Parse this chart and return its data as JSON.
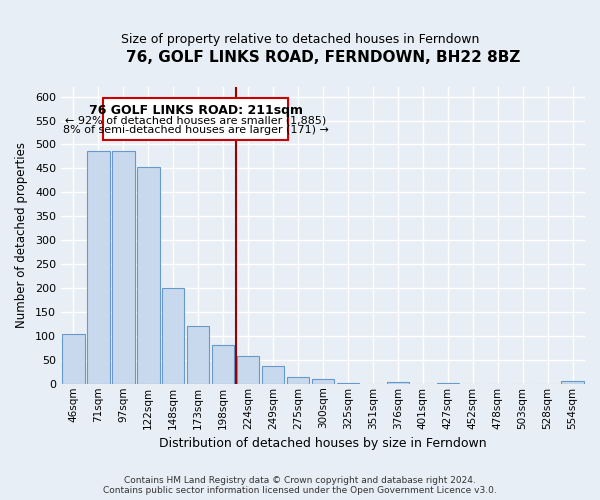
{
  "title": "76, GOLF LINKS ROAD, FERNDOWN, BH22 8BZ",
  "subtitle": "Size of property relative to detached houses in Ferndown",
  "xlabel": "Distribution of detached houses by size in Ferndown",
  "ylabel": "Number of detached properties",
  "bar_labels": [
    "46sqm",
    "71sqm",
    "97sqm",
    "122sqm",
    "148sqm",
    "173sqm",
    "198sqm",
    "224sqm",
    "249sqm",
    "275sqm",
    "300sqm",
    "325sqm",
    "351sqm",
    "376sqm",
    "401sqm",
    "427sqm",
    "452sqm",
    "478sqm",
    "503sqm",
    "528sqm",
    "554sqm"
  ],
  "bar_values": [
    105,
    487,
    487,
    452,
    201,
    120,
    82,
    57,
    38,
    15,
    10,
    2,
    0,
    3,
    0,
    1,
    0,
    0,
    0,
    0,
    5
  ],
  "bar_color": "#c9d9ed",
  "bar_edge_color": "#6699cc",
  "vline_color": "#990000",
  "annotation_title": "76 GOLF LINKS ROAD: 211sqm",
  "annotation_line1": "← 92% of detached houses are smaller (1,885)",
  "annotation_line2": "8% of semi-detached houses are larger (171) →",
  "annotation_box_color": "#ffffff",
  "annotation_box_edge": "#cc0000",
  "ylim": [
    0,
    620
  ],
  "yticks": [
    0,
    50,
    100,
    150,
    200,
    250,
    300,
    350,
    400,
    450,
    500,
    550,
    600
  ],
  "footer_line1": "Contains HM Land Registry data © Crown copyright and database right 2024.",
  "footer_line2": "Contains public sector information licensed under the Open Government Licence v3.0.",
  "background_color": "#e8eef5",
  "grid_color": "#ffffff"
}
